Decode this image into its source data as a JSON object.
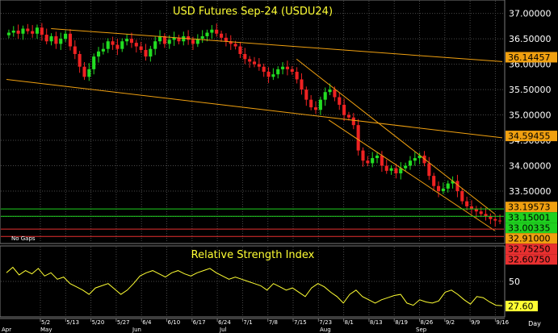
{
  "chart_data": [
    {
      "type": "candlestick",
      "title": "USD  Futures  Sep-24  (USDU24)",
      "note": "No Gaps",
      "ylim": [
        32.5,
        37.2
      ],
      "yticks": [
        "37.00000",
        "36.50000",
        "36.00000",
        "35.50000",
        "35.00000",
        "34.50000",
        "34.00000",
        "33.50000",
        "33.00000"
      ],
      "ytick_values": [
        37.0,
        36.5,
        36.0,
        35.5,
        35.0,
        34.5,
        34.0,
        33.5,
        33.0
      ],
      "grid": true,
      "series_closes": [
        36.62,
        36.66,
        36.6,
        36.7,
        36.65,
        36.6,
        36.72,
        36.58,
        36.45,
        36.55,
        36.4,
        36.5,
        36.6,
        36.35,
        36.2,
        35.95,
        35.75,
        35.9,
        36.15,
        36.25,
        36.3,
        36.45,
        36.38,
        36.3,
        36.45,
        36.5,
        36.42,
        36.35,
        36.28,
        36.15,
        36.3,
        36.45,
        36.55,
        36.4,
        36.48,
        36.52,
        36.45,
        36.55,
        36.48,
        36.4,
        36.5,
        36.55,
        36.62,
        36.68,
        36.6,
        36.52,
        36.45,
        36.4,
        36.35,
        36.2,
        36.1,
        36.05,
        36.0,
        35.95,
        35.85,
        35.75,
        35.8,
        35.9,
        35.95,
        35.9,
        35.85,
        35.7,
        35.5,
        35.3,
        35.15,
        35.1,
        35.3,
        35.45,
        35.5,
        35.35,
        35.2,
        35.0,
        34.95,
        34.8,
        34.3,
        34.1,
        34.05,
        34.15,
        34.2,
        34.0,
        33.9,
        33.95,
        33.85,
        33.95,
        34.0,
        34.1,
        34.15,
        34.2,
        34.05,
        33.8,
        33.6,
        33.5,
        33.55,
        33.65,
        33.7,
        33.5,
        33.3,
        33.2,
        33.15,
        33.1,
        33.05,
        33.0,
        32.95,
        32.92,
        32.91
      ],
      "trendlines": [
        {
          "from": [
            36.7,
            0.09
          ],
          "to": [
            36.05,
            1.0
          ]
        },
        {
          "from": [
            35.7,
            0.0
          ],
          "to": [
            34.55,
            1.0
          ]
        },
        {
          "from": [
            36.1,
            0.585
          ],
          "to": [
            33.05,
            0.985
          ]
        },
        {
          "from": [
            34.9,
            0.65
          ],
          "to": [
            32.72,
            0.985
          ]
        }
      ],
      "horizontal_lines": [
        {
          "value": 33.15001,
          "color": "#1fd11f"
        },
        {
          "value": 33.00335,
          "color": "#1fd11f"
        },
        {
          "value": 32.7525,
          "color": "#e83030"
        },
        {
          "value": 32.6075,
          "color": "#e83030"
        }
      ],
      "value_labels": [
        {
          "value": 36.14457,
          "text": "36.14457",
          "bg": "#f0a010"
        },
        {
          "value": 34.59455,
          "text": "34.59455",
          "bg": "#f0a010"
        },
        {
          "value": 33.19573,
          "text": "33.19573",
          "bg": "#f0a010"
        },
        {
          "value": 33.15001,
          "text": "33.15001",
          "bg": "#1fd11f"
        },
        {
          "value": 33.00335,
          "text": "33.00335",
          "bg": "#1fd11f"
        },
        {
          "value": 32.91,
          "text": "32.91000",
          "bg": "#f0a010"
        },
        {
          "value": 32.7525,
          "text": "32.75250",
          "bg": "#e83030"
        },
        {
          "value": 32.6075,
          "text": "32.60750",
          "bg": "#e83030"
        }
      ]
    },
    {
      "type": "line",
      "title": "Relative Strength Index",
      "ylim": [
        18,
        82
      ],
      "yticks": [
        "50"
      ],
      "ytick_values": [
        50
      ],
      "last_value_label": "27.60",
      "values": [
        58,
        63,
        56,
        60,
        57,
        62,
        55,
        58,
        52,
        54,
        48,
        45,
        42,
        38,
        44,
        46,
        48,
        43,
        38,
        42,
        48,
        55,
        58,
        60,
        57,
        54,
        58,
        60,
        57,
        55,
        58,
        60,
        62,
        58,
        55,
        52,
        54,
        52,
        50,
        48,
        46,
        42,
        48,
        45,
        42,
        44,
        40,
        36,
        44,
        48,
        45,
        40,
        36,
        30,
        38,
        42,
        36,
        33,
        30,
        33,
        35,
        37,
        38,
        30,
        28,
        33,
        31,
        30,
        32,
        40,
        42,
        38,
        33,
        29,
        36,
        35,
        31,
        28,
        27.6
      ]
    }
  ],
  "x_axis": {
    "day_labels": [
      "5/2",
      "5/13",
      "5/20",
      "5/27",
      "6/4",
      "6/10",
      "6/17",
      "6/24",
      "7/1",
      "7/8",
      "7/15",
      "7/23",
      "8/1",
      "8/13",
      "8/19",
      "8/26",
      "9/2",
      "9/9",
      "9/16"
    ],
    "month_labels": [
      "Apr",
      "May",
      "Jun",
      "Jul",
      "Aug",
      "Sep"
    ],
    "unit_label": "Day"
  },
  "colors": {
    "up": "#22dd22",
    "down": "#ee2222",
    "trend": "#f0a010",
    "title": "#ffff33",
    "grid": "#4a4a4a",
    "axis_text": "#ffffff",
    "rsi_line": "#ffff33"
  }
}
